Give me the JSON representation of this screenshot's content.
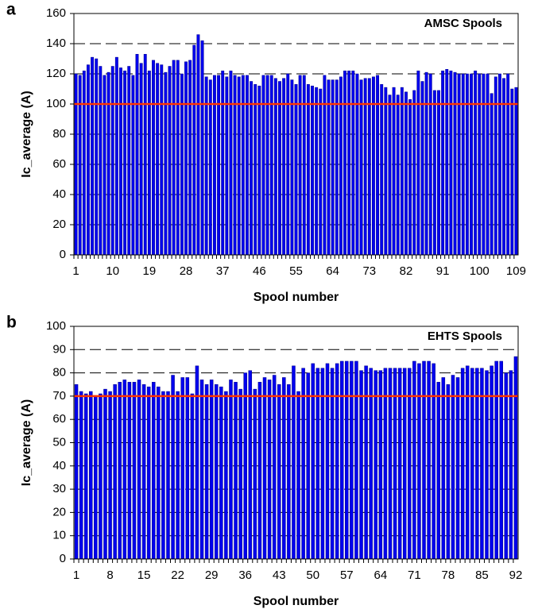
{
  "chart_data": [
    {
      "type": "bar",
      "panel_label": "a",
      "title": "AMSC Spools",
      "xlabel": "Spool number",
      "ylabel": "Ic_average (A)",
      "categories": [
        "1",
        null,
        null,
        null,
        null,
        null,
        null,
        null,
        null,
        "10",
        null,
        null,
        null,
        null,
        null,
        null,
        null,
        null,
        "19",
        null,
        null,
        null,
        null,
        null,
        null,
        null,
        null,
        "28",
        null,
        null,
        null,
        null,
        null,
        null,
        null,
        null,
        "37",
        null,
        null,
        null,
        null,
        null,
        null,
        null,
        null,
        "46",
        null,
        null,
        null,
        null,
        null,
        null,
        null,
        null,
        "55",
        null,
        null,
        null,
        null,
        null,
        null,
        null,
        null,
        "64",
        null,
        null,
        null,
        null,
        null,
        null,
        null,
        null,
        "73",
        null,
        null,
        null,
        null,
        null,
        null,
        null,
        null,
        "82",
        null,
        null,
        null,
        null,
        null,
        null,
        null,
        null,
        "91",
        null,
        null,
        null,
        null,
        null,
        null,
        null,
        null,
        "100",
        null,
        null,
        null,
        null,
        null,
        null,
        null,
        null,
        "109"
      ],
      "values": [
        120,
        119,
        122,
        126,
        131,
        130,
        125,
        119,
        121,
        125,
        131,
        124,
        122,
        125,
        119,
        133,
        127,
        133,
        122,
        129,
        127,
        126,
        121,
        125,
        129,
        129,
        120,
        128,
        129,
        139,
        146,
        142,
        118,
        116,
        119,
        119,
        122,
        118,
        122,
        119,
        118,
        119,
        119,
        115,
        113,
        112,
        119,
        119,
        119,
        117,
        115,
        117,
        120,
        116,
        113,
        119,
        119,
        113,
        112,
        111,
        110,
        119,
        116,
        116,
        116,
        118,
        122,
        122,
        122,
        120,
        116,
        117,
        117,
        118,
        119,
        113,
        111,
        106,
        111,
        106,
        111,
        108,
        103,
        109,
        122,
        115,
        121,
        120,
        109,
        109,
        122,
        123,
        122,
        121,
        120,
        120,
        120,
        120,
        122,
        120,
        120,
        120,
        107,
        118,
        120,
        117,
        120,
        110,
        111
      ],
      "color": "#0000ee",
      "ylim": [
        0,
        160
      ],
      "yticks": [
        0,
        20,
        40,
        60,
        80,
        100,
        120,
        140,
        160
      ],
      "grid": true,
      "reference_line": {
        "value": 100,
        "color": "#ff3300"
      }
    },
    {
      "type": "bar",
      "panel_label": "b",
      "title": "EHTS Spools",
      "xlabel": "Spool number",
      "ylabel": "Ic_average (A)",
      "categories": [
        "1",
        null,
        null,
        null,
        null,
        null,
        null,
        "8",
        null,
        null,
        null,
        null,
        null,
        null,
        "15",
        null,
        null,
        null,
        null,
        null,
        null,
        "22",
        null,
        null,
        null,
        null,
        null,
        null,
        "29",
        null,
        null,
        null,
        null,
        null,
        null,
        "36",
        null,
        null,
        null,
        null,
        null,
        null,
        "43",
        null,
        null,
        null,
        null,
        null,
        null,
        "50",
        null,
        null,
        null,
        null,
        null,
        null,
        "57",
        null,
        null,
        null,
        null,
        null,
        null,
        "64",
        null,
        null,
        null,
        null,
        null,
        null,
        "71",
        null,
        null,
        null,
        null,
        null,
        null,
        "78",
        null,
        null,
        null,
        null,
        null,
        null,
        "85",
        null,
        null,
        null,
        null,
        null,
        null,
        "92"
      ],
      "values": [
        75,
        72,
        71,
        72,
        70,
        71,
        73,
        72,
        75,
        76,
        77,
        76,
        76,
        77,
        75,
        74,
        76,
        74,
        72,
        72,
        79,
        72,
        78,
        78,
        71,
        83,
        77,
        75,
        77,
        75,
        74,
        72,
        77,
        76,
        73,
        80,
        81,
        73,
        76,
        78,
        77,
        79,
        75,
        78,
        75,
        83,
        72,
        82,
        80,
        84,
        82,
        82,
        84,
        82,
        84,
        85,
        85,
        85,
        85,
        81,
        83,
        82,
        81,
        81,
        82,
        82,
        82,
        82,
        82,
        82,
        85,
        84,
        85,
        85,
        84,
        76,
        78,
        75,
        79,
        78,
        82,
        83,
        82,
        82,
        82,
        81,
        83,
        85,
        85,
        80,
        81,
        87
      ],
      "color": "#0000ee",
      "ylim": [
        0,
        100
      ],
      "yticks": [
        0,
        10,
        20,
        30,
        40,
        50,
        60,
        70,
        80,
        90,
        100
      ],
      "grid": true,
      "reference_line": {
        "value": 70,
        "color": "#ff3300"
      }
    }
  ]
}
